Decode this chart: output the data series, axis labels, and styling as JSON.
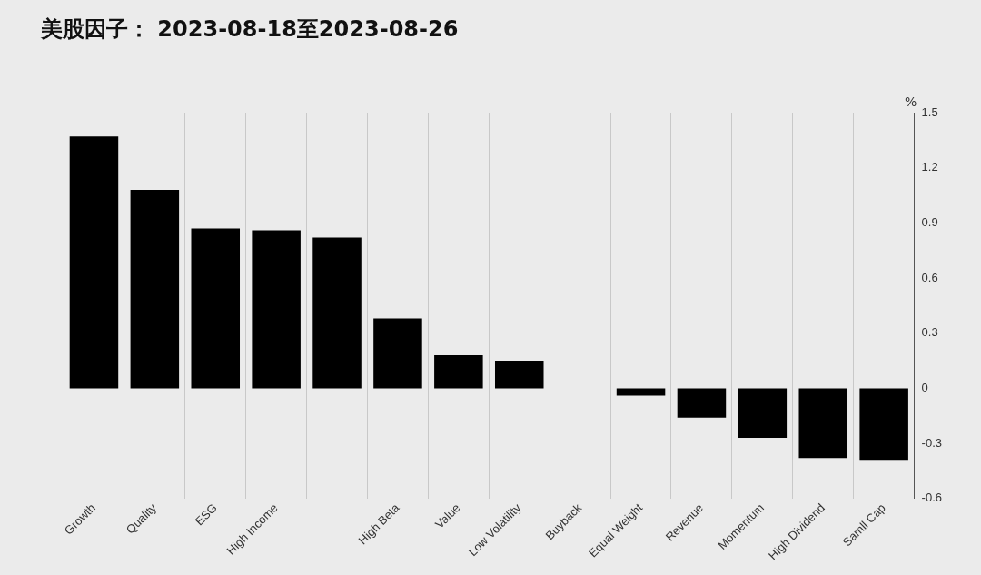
{
  "chart_data": {
    "type": "bar",
    "title": "美股因子： 2023-08-18至2023-08-26",
    "ylabel": "%",
    "categories": [
      "Growth",
      "Quality",
      "ESG",
      "High Income",
      null,
      "High Beta",
      "Value",
      "Low Volatility",
      "Buyback",
      "Equal Weight",
      "Revenue",
      "Momentum",
      "High Dividend",
      "Samll Cap"
    ],
    "values": [
      1.37,
      1.08,
      0.87,
      0.86,
      0.82,
      0.38,
      0.18,
      0.15,
      0,
      -0.04,
      -0.16,
      -0.27,
      -0.38,
      -0.39
    ],
    "color": "#000000",
    "ylim": [
      -0.6,
      1.5
    ],
    "yticks": [
      -0.6,
      -0.3,
      0,
      0.3,
      0.6,
      0.9,
      1.2,
      1.5
    ],
    "grid": "x",
    "legend": false
  }
}
